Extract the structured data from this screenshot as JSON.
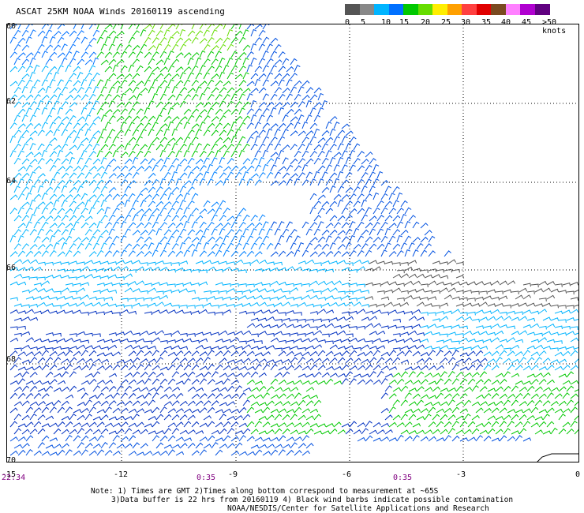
{
  "title": "ASCAT 25KM NOAA Winds 20160119 ascending",
  "scale": {
    "ticks": [
      "0",
      "5",
      "10",
      "15",
      "20",
      "25",
      "30",
      "35",
      "40",
      "45",
      ">50 knots"
    ],
    "colors": [
      "#555555",
      "#888888",
      "#00b4ff",
      "#0070ff",
      "#00c800",
      "#66dd00",
      "#ffee00",
      "#ffa000",
      "#ff4040",
      "#e00000",
      "#7a4a20",
      "#ff80ff",
      "#b000d0",
      "#600080"
    ]
  },
  "axes": {
    "lat_labels": [
      "60",
      "62",
      "64",
      "66",
      "68",
      "70"
    ],
    "lon_labels": [
      "-15",
      "-12",
      "-9",
      "-6",
      "-3",
      "0"
    ],
    "time_labels": [
      "22:34",
      "0:35",
      "0:35"
    ]
  },
  "notes": [
    "Note: 1) Times are GMT 2)Times along bottom correspond to measurement at ~65S",
    "3)Data buffer is 22 hrs from 20160119 4) Black wind barbs indicate possible contamination",
    "NOAA/NESDIS/Center for Satellite Applications and Research"
  ]
}
